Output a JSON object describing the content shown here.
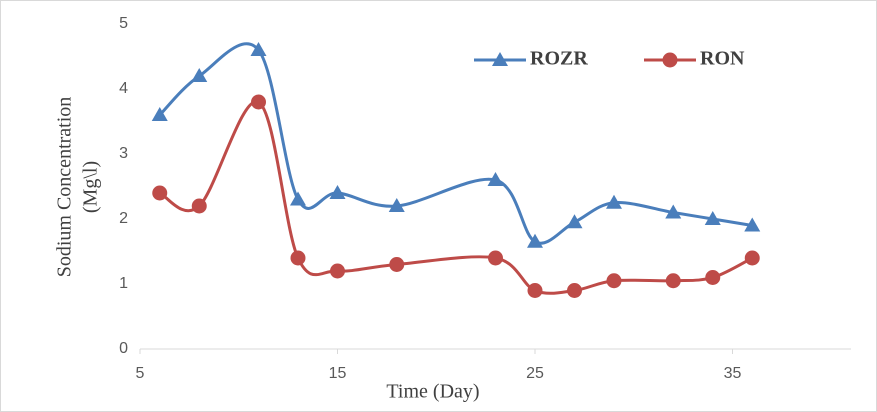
{
  "chart_data": {
    "type": "line",
    "x_label": "Time (Day)",
    "y_label": [
      "Sodium Concentration",
      "(Mg\\l)"
    ],
    "x": [
      6,
      8,
      11,
      13,
      15,
      18,
      23,
      25,
      27,
      29,
      32,
      34,
      36
    ],
    "series": [
      {
        "name": "ROZR",
        "color": "#4a7ebb",
        "marker": "triangle",
        "values": [
          3.6,
          4.2,
          4.6,
          2.3,
          2.4,
          2.2,
          2.6,
          1.65,
          1.95,
          2.25,
          2.1,
          2.0,
          1.9
        ]
      },
      {
        "name": "RON",
        "color": "#be4b48",
        "marker": "circle",
        "values": [
          2.4,
          2.2,
          3.8,
          1.4,
          1.2,
          1.3,
          1.4,
          0.9,
          0.9,
          1.05,
          1.05,
          1.1,
          1.4
        ]
      }
    ],
    "xlim": [
      5,
      41
    ],
    "xticks": [
      5,
      15,
      25,
      35
    ],
    "ylim": [
      0,
      5
    ],
    "yticks": [
      0,
      1,
      2,
      3,
      4,
      5
    ],
    "smooth": true,
    "legend": "top-right"
  }
}
